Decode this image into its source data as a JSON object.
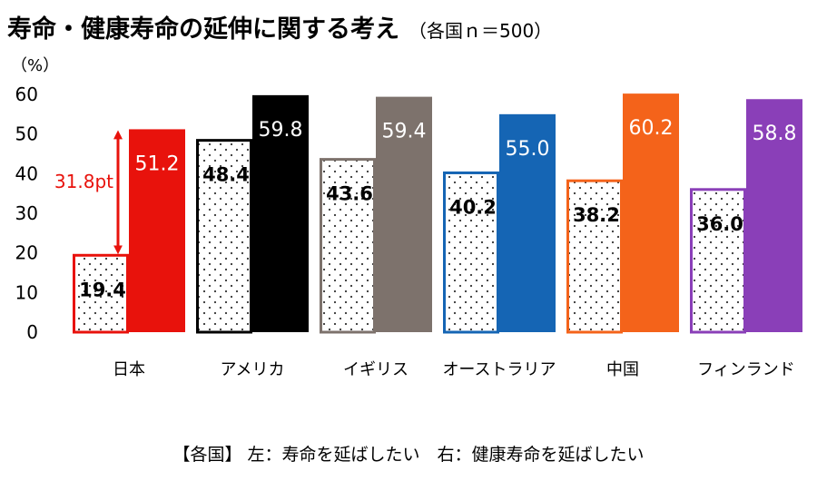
{
  "title": "寿命・健康寿命の延伸に関する考え",
  "subtitle": "（各国ｎ＝500）",
  "footnote": "【各国】 左：寿命を延ばしたい　右：健康寿命を延ばしたい",
  "chart_data": {
    "type": "bar",
    "unit_label": "（%）",
    "ylim": [
      0,
      60
    ],
    "yticks": [
      0,
      10,
      20,
      30,
      40,
      50,
      60
    ],
    "categories": [
      "日本",
      "アメリカ",
      "イギリス",
      "オーストラリア",
      "中国",
      "フィンランド"
    ],
    "series": [
      {
        "pattern": "dotted",
        "values": [
          19.4,
          48.4,
          43.6,
          40.2,
          38.2,
          36.0
        ],
        "labels": [
          "19.4",
          "48.4",
          "43.6",
          "40.2",
          "38.2",
          "36.0"
        ]
      },
      {
        "pattern": "solid",
        "values": [
          51.2,
          59.8,
          59.4,
          55.0,
          60.2,
          58.8
        ],
        "labels": [
          "51.2",
          "59.8",
          "59.4",
          "55.0",
          "60.2",
          "58.8"
        ]
      }
    ],
    "country_colors": [
      "#e8120c",
      "#000000",
      "#7d726c",
      "#1565b4",
      "#f4631a",
      "#8a3fb8"
    ],
    "annotation": {
      "text": "31.8pt",
      "category": "日本",
      "from": 19.4,
      "to": 51.2,
      "color": "#e8120c"
    },
    "grid": false,
    "legend": "none"
  }
}
